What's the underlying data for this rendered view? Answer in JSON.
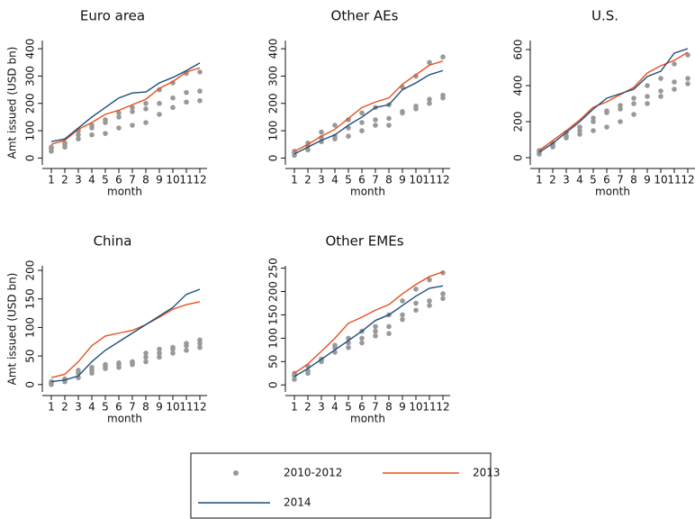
{
  "legend": [
    {
      "name": "2010-2012",
      "color": "#999999"
    },
    {
      "name": "2013",
      "color": "#e8501e"
    },
    {
      "name": "2014",
      "color": "#1f4e79"
    }
  ],
  "chart_data": [
    {
      "type": "line",
      "title": "Euro area",
      "y_label": "Amt issued (USD bn)",
      "x_label": "month",
      "categories": [
        "1",
        "2",
        "3",
        "4",
        "5",
        "6",
        "7",
        "8",
        "9",
        "10",
        "11",
        "12"
      ],
      "ylim": [
        -25,
        430
      ],
      "yticks": [
        0,
        100,
        200,
        300,
        400
      ],
      "series": [
        {
          "values": [
            [
              25,
              35,
              40
            ],
            [
              40,
              50,
              55
            ],
            [
              70,
              85,
              100
            ],
            [
              85,
              110,
              120
            ],
            [
              90,
              130,
              140
            ],
            [
              110,
              150,
              165
            ],
            [
              120,
              170,
              185
            ],
            [
              130,
              180,
              200
            ],
            [
              160,
              200,
              250
            ],
            [
              185,
              220,
              275
            ],
            [
              205,
              240,
              310
            ],
            [
              210,
              245,
              315
            ]
          ]
        },
        {
          "values": [
            50,
            65,
            105,
            130,
            160,
            175,
            195,
            215,
            255,
            280,
            315,
            330
          ]
        },
        {
          "values": [
            60,
            70,
            110,
            150,
            185,
            220,
            238,
            242,
            275,
            295,
            320,
            348
          ]
        }
      ]
    },
    {
      "type": "line",
      "title": "Other AEs",
      "x_label": "month",
      "categories": [
        "1",
        "2",
        "3",
        "4",
        "5",
        "6",
        "7",
        "8",
        "9",
        "10",
        "11",
        "12"
      ],
      "ylim": [
        -25,
        430
      ],
      "yticks": [
        0,
        100,
        200,
        300,
        400
      ],
      "series": [
        {
          "values": [
            [
              10,
              20,
              25
            ],
            [
              30,
              45,
              55
            ],
            [
              60,
              75,
              95
            ],
            [
              70,
              80,
              120
            ],
            [
              80,
              110,
              140
            ],
            [
              100,
              130,
              165
            ],
            [
              120,
              140,
              185
            ],
            [
              120,
              145,
              195
            ],
            [
              165,
              170,
              260
            ],
            [
              180,
              190,
              300
            ],
            [
              200,
              215,
              350
            ],
            [
              220,
              230,
              370
            ]
          ]
        },
        {
          "values": [
            25,
            50,
            80,
            105,
            145,
            185,
            205,
            220,
            270,
            305,
            340,
            355
          ]
        },
        {
          "values": [
            15,
            40,
            65,
            85,
            120,
            150,
            185,
            195,
            250,
            275,
            305,
            320
          ]
        }
      ]
    },
    {
      "type": "line",
      "title": "U.S.",
      "x_label": "month",
      "categories": [
        "1",
        "2",
        "3",
        "4",
        "5",
        "6",
        "7",
        "8",
        "9",
        "10",
        "11",
        "12"
      ],
      "ylim": [
        -40,
        650
      ],
      "yticks": [
        0,
        200,
        400,
        600
      ],
      "series": [
        {
          "values": [
            [
              20,
              30,
              40
            ],
            [
              60,
              70,
              80
            ],
            [
              110,
              120,
              140
            ],
            [
              130,
              150,
              170
            ],
            [
              150,
              200,
              220
            ],
            [
              170,
              250,
              260
            ],
            [
              200,
              270,
              290
            ],
            [
              240,
              300,
              330
            ],
            [
              300,
              340,
              400
            ],
            [
              340,
              370,
              440
            ],
            [
              380,
              420,
              520
            ],
            [
              410,
              440,
              570
            ]
          ]
        },
        {
          "values": [
            40,
            95,
            150,
            210,
            280,
            310,
            350,
            390,
            470,
            510,
            540,
            585
          ]
        },
        {
          "values": [
            30,
            80,
            140,
            200,
            270,
            330,
            355,
            380,
            450,
            480,
            580,
            605
          ]
        }
      ]
    },
    {
      "type": "line",
      "title": "China",
      "y_label": "Amt issued (USD bn)",
      "x_label": "month",
      "categories": [
        "1",
        "2",
        "3",
        "4",
        "5",
        "6",
        "7",
        "8",
        "9",
        "10",
        "11",
        "12"
      ],
      "ylim": [
        -13,
        208
      ],
      "yticks": [
        0,
        50,
        100,
        150,
        200
      ],
      "series": [
        {
          "values": [
            [
              0,
              3,
              5
            ],
            [
              5,
              8,
              10
            ],
            [
              12,
              20,
              25
            ],
            [
              20,
              25,
              30
            ],
            [
              28,
              32,
              35
            ],
            [
              30,
              35,
              38
            ],
            [
              35,
              38,
              40
            ],
            [
              40,
              48,
              55
            ],
            [
              48,
              55,
              62
            ],
            [
              55,
              62,
              65
            ],
            [
              60,
              68,
              72
            ],
            [
              65,
              72,
              78
            ]
          ]
        },
        {
          "values": [
            12,
            18,
            40,
            68,
            85,
            90,
            95,
            105,
            118,
            132,
            140,
            145
          ]
        },
        {
          "values": [
            5,
            8,
            15,
            40,
            60,
            75,
            90,
            105,
            120,
            135,
            158,
            167
          ]
        }
      ]
    },
    {
      "type": "line",
      "title": "Other EMEs",
      "x_label": "month",
      "categories": [
        "1",
        "2",
        "3",
        "4",
        "5",
        "6",
        "7",
        "8",
        "9",
        "10",
        "11",
        "12"
      ],
      "ylim": [
        -15,
        255
      ],
      "yticks": [
        0,
        50,
        100,
        150,
        200,
        250
      ],
      "series": [
        {
          "values": [
            [
              12,
              20,
              25
            ],
            [
              25,
              30,
              40
            ],
            [
              50,
              55,
              55
            ],
            [
              70,
              80,
              85
            ],
            [
              80,
              90,
              100
            ],
            [
              90,
              100,
              115
            ],
            [
              105,
              115,
              125
            ],
            [
              110,
              125,
              150
            ],
            [
              140,
              150,
              180
            ],
            [
              160,
              175,
              205
            ],
            [
              170,
              180,
              225
            ],
            [
              185,
              195,
              240
            ]
          ]
        },
        {
          "values": [
            25,
            45,
            72,
            100,
            132,
            145,
            160,
            172,
            195,
            215,
            232,
            242
          ]
        },
        {
          "values": [
            18,
            35,
            55,
            75,
            95,
            115,
            138,
            150,
            170,
            190,
            207,
            212
          ]
        }
      ]
    }
  ]
}
